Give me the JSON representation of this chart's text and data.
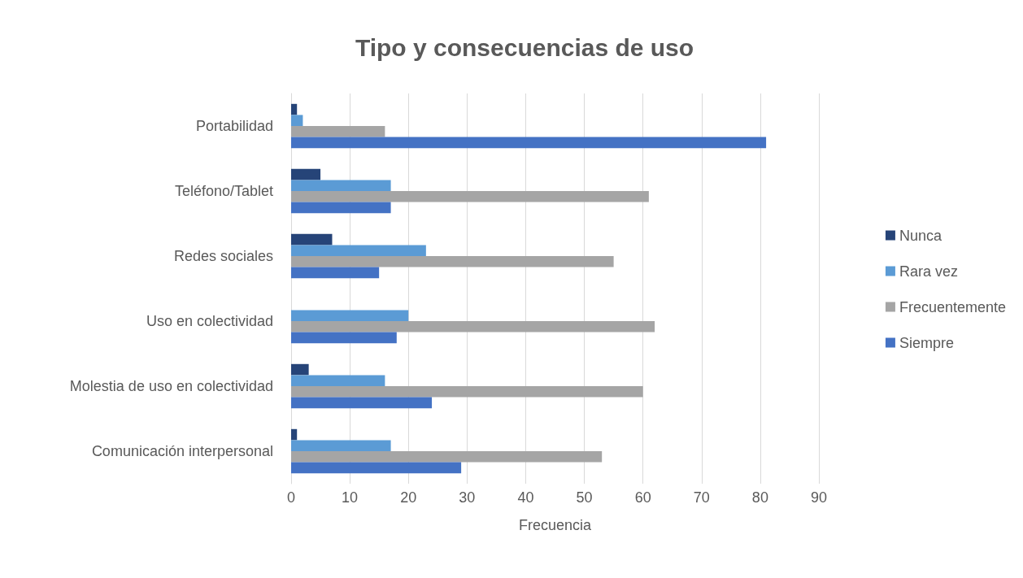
{
  "chart_data": {
    "type": "bar",
    "orientation": "horizontal",
    "title": "Tipo y consecuencias de uso",
    "xlabel": "Frecuencia",
    "categories": [
      "Portabilidad",
      "Teléfono/Tablet",
      "Redes sociales",
      "Uso en colectividad",
      "Molestia de uso en colectividad",
      "Comunicación interpersonal"
    ],
    "series": [
      {
        "name": "Nunca",
        "color": "#264478",
        "values": [
          1,
          5,
          7,
          0,
          3,
          1
        ]
      },
      {
        "name": "Rara vez",
        "color": "#5b9bd5",
        "values": [
          2,
          17,
          23,
          20,
          16,
          17
        ]
      },
      {
        "name": "Frecuentemente",
        "color": "#a5a5a5",
        "values": [
          16,
          61,
          55,
          62,
          60,
          53
        ]
      },
      {
        "name": "Siempre",
        "color": "#4472c4",
        "values": [
          81,
          17,
          15,
          18,
          24,
          29
        ]
      }
    ],
    "xlim": [
      0,
      90
    ],
    "xticks": [
      0,
      10,
      20,
      30,
      40,
      50,
      60,
      70,
      80,
      90
    ],
    "grid": "x",
    "legend": "right"
  }
}
